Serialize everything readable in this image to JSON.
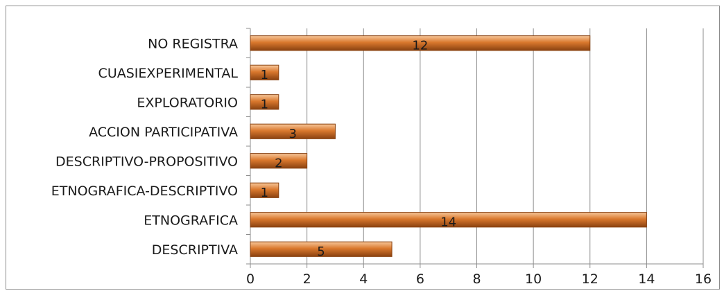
{
  "chart_data": {
    "type": "bar",
    "orientation": "horizontal",
    "categories": [
      "NO REGISTRA",
      "CUASIEXPERIMENTAL",
      "EXPLORATORIO",
      "ACCION PARTICIPATIVA",
      "DESCRIPTIVO-PROPOSITIVO",
      "ETNOGRAFICA-DESCRIPTIVO",
      "ETNOGRAFICA",
      "DESCRIPTIVA"
    ],
    "values": [
      12,
      1,
      1,
      3,
      2,
      1,
      14,
      5
    ],
    "title": "",
    "xlabel": "",
    "ylabel": "",
    "xlim": [
      0,
      16
    ],
    "xticks": [
      0,
      2,
      4,
      6,
      8,
      10,
      12,
      14,
      16
    ],
    "grid": "vertical",
    "legend": "none",
    "data_labels": true,
    "bar_color": "#d9782d",
    "bar_highlight": "#f7c79a",
    "bar_shadow": "#8a4210"
  }
}
